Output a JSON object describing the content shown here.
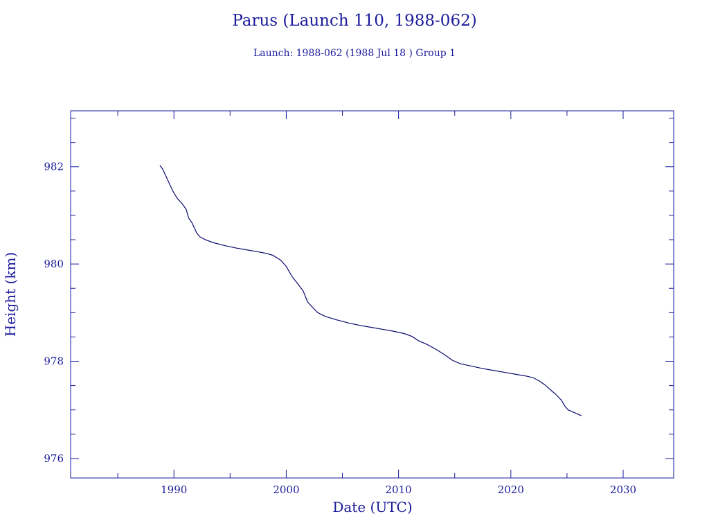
{
  "colors": {
    "axis": "#1a1a9c",
    "line": "#0a0a6e",
    "background": "#ffffff"
  },
  "chart_data": {
    "type": "line",
    "title": "Parus (Launch 110, 1988-062)",
    "subtitle": "Launch: 1988-062  (1988 Jul 18 )  Group 1",
    "xlabel": "Date (UTC)",
    "ylabel": "Height (km)",
    "xlim": [
      1980.8,
      2034.5
    ],
    "ylim": [
      975.6,
      983.15
    ],
    "x_ticks": [
      1990,
      2000,
      2010,
      2020,
      2030
    ],
    "y_ticks": [
      976,
      978,
      980,
      982
    ],
    "grid": false,
    "series": [
      {
        "x": [
          1988.75,
          1989.0,
          1989.4,
          1989.9,
          1990.3,
          1990.7,
          1991.1,
          1991.3,
          1991.6,
          1992.0,
          1992.3,
          1992.8,
          1993.5,
          1994.5,
          1995.5,
          1996.5,
          1997.5,
          1998.2,
          1998.8,
          1999.5,
          2000.0,
          2000.5,
          2001.0,
          2001.5,
          2001.9,
          2002.3,
          2002.8,
          2003.5,
          2004.5,
          2005.5,
          2006.5,
          2007.5,
          2008.5,
          2009.5,
          2010.5,
          2011.2,
          2011.8,
          2012.5,
          2013.3,
          2014.0,
          2014.8,
          2015.5,
          2016.5,
          2017.5,
          2018.5,
          2019.5,
          2020.5,
          2021.5,
          2022.0,
          2022.5,
          2023.0,
          2023.5,
          2024.0,
          2024.5,
          2024.8,
          2025.1,
          2025.5,
          2026.0,
          2026.3
        ],
        "y": [
          982.03,
          981.95,
          981.75,
          981.5,
          981.35,
          981.25,
          981.12,
          980.95,
          980.85,
          980.65,
          980.56,
          980.5,
          980.44,
          980.38,
          980.33,
          980.29,
          980.25,
          980.22,
          980.18,
          980.08,
          979.95,
          979.75,
          979.6,
          979.45,
          979.22,
          979.12,
          979.0,
          978.92,
          978.85,
          978.79,
          978.74,
          978.7,
          978.66,
          978.62,
          978.57,
          978.51,
          978.42,
          978.35,
          978.25,
          978.15,
          978.02,
          977.95,
          977.9,
          977.85,
          977.81,
          977.77,
          977.73,
          977.69,
          977.66,
          977.6,
          977.52,
          977.42,
          977.32,
          977.2,
          977.08,
          977.0,
          976.96,
          976.91,
          976.88
        ]
      }
    ]
  }
}
